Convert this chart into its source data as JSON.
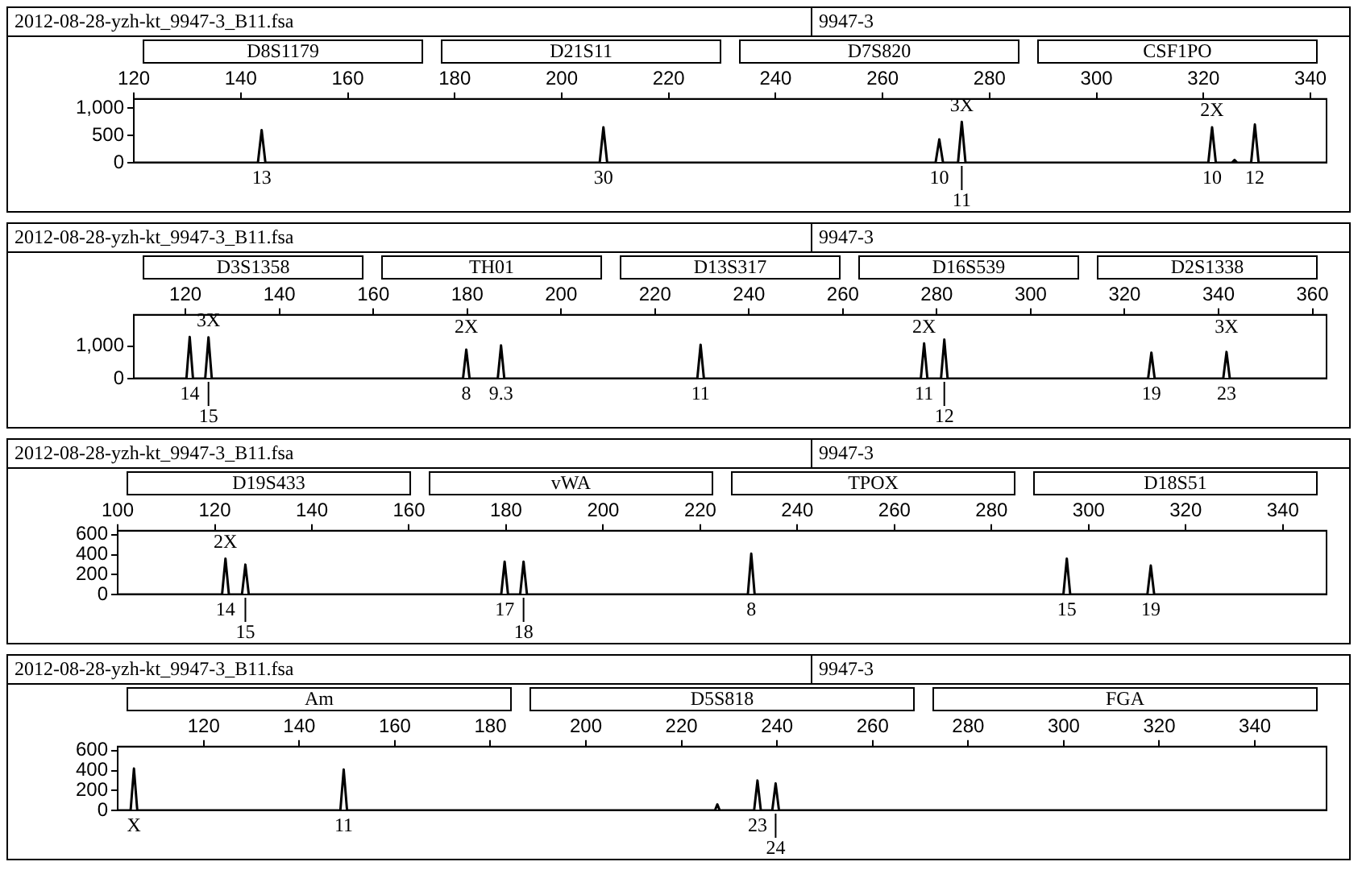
{
  "chart_data": [
    {
      "type": "line",
      "title": "2012-08-28-yzh-kt_9947-3_B11.fsa",
      "subtitle": "9947-3",
      "color": "#000000",
      "xlim": [
        120,
        343
      ],
      "xticks": [
        120,
        140,
        160,
        180,
        200,
        220,
        240,
        260,
        280,
        300,
        320,
        340
      ],
      "ylim": [
        0,
        1170
      ],
      "yticks": [
        0,
        500,
        {
          "value": 1000,
          "label": "1,000"
        }
      ],
      "x": [
        120,
        143.2,
        143.9,
        144.6,
        207.1,
        207.8,
        208.5,
        269.9,
        270.6,
        271.3,
        274.1,
        274.8,
        275.5,
        320.9,
        321.6,
        322.3,
        325.3,
        325.8,
        326.3,
        328.9,
        329.6,
        330.3,
        343
      ],
      "values": [
        0,
        0,
        600,
        0,
        0,
        650,
        0,
        0,
        430,
        0,
        0,
        750,
        0,
        0,
        650,
        0,
        0,
        50,
        0,
        0,
        700,
        0,
        0
      ],
      "annotations": [
        "D8S1179",
        "D21S11",
        "D7S820",
        "CSF1PO",
        {
          "text": "13",
          "x": 143.9,
          "y": 0
        },
        {
          "text": "30",
          "x": 207.8,
          "y": 0
        },
        {
          "text": "10",
          "x": 270.6,
          "y": 0
        },
        {
          "text": "11",
          "x": 274.8,
          "y": 0
        },
        {
          "text": "10",
          "x": 321.6,
          "y": 0
        },
        {
          "text": "12",
          "x": 329.6,
          "y": 0
        },
        {
          "text": "3X",
          "x": 274.8,
          "y": 750
        },
        {
          "text": "2X",
          "x": 321.6,
          "y": 650
        }
      ]
    },
    {
      "type": "line",
      "title": "2012-08-28-yzh-kt_9947-3_B11.fsa",
      "subtitle": "9947-3",
      "color": "#000000",
      "xlim": [
        109,
        363
      ],
      "xticks": [
        120,
        140,
        160,
        180,
        200,
        220,
        240,
        260,
        280,
        300,
        320,
        340,
        360
      ],
      "ylim": [
        0,
        1960
      ],
      "yticks": [
        0,
        {
          "value": 1000,
          "label": "1,000"
        }
      ],
      "x": [
        109,
        120.2,
        120.9,
        121.6,
        124.2,
        124.9,
        125.6,
        179.1,
        179.8,
        180.5,
        186.5,
        187.2,
        187.9,
        229,
        229.7,
        230.4,
        276.6,
        277.3,
        278,
        280.9,
        281.6,
        282.3,
        325,
        325.7,
        326.4,
        341,
        341.7,
        342.4,
        363
      ],
      "values": [
        0,
        0,
        1280,
        0,
        0,
        1270,
        0,
        0,
        890,
        0,
        0,
        1020,
        0,
        0,
        1040,
        0,
        0,
        1080,
        0,
        0,
        1200,
        0,
        0,
        800,
        0,
        0,
        820,
        0,
        0
      ],
      "annotations": [
        "D3S1358",
        "TH01",
        "D13S317",
        "D16S539",
        "D2S1338",
        {
          "text": "14",
          "x": 120.9,
          "y": 0
        },
        {
          "text": "15",
          "x": 124.9,
          "y": 0
        },
        {
          "text": "8",
          "x": 179.8,
          "y": 0
        },
        {
          "text": "9.3",
          "x": 187.2,
          "y": 0
        },
        {
          "text": "11",
          "x": 229.7,
          "y": 0
        },
        {
          "text": "11",
          "x": 277.3,
          "y": 0
        },
        {
          "text": "12",
          "x": 281.6,
          "y": 0
        },
        {
          "text": "19",
          "x": 325.7,
          "y": 0
        },
        {
          "text": "23",
          "x": 341.7,
          "y": 0
        },
        {
          "text": "3X",
          "x": 124.9,
          "y": 1270
        },
        {
          "text": "2X",
          "x": 179.8,
          "y": 890
        },
        {
          "text": "2X",
          "x": 277.3,
          "y": 1080
        },
        {
          "text": "3X",
          "x": 341.7,
          "y": 820
        }
      ]
    },
    {
      "type": "line",
      "title": "2012-08-28-yzh-kt_9947-3_B11.fsa",
      "subtitle": "9947-3",
      "color": "#000000",
      "xlim": [
        100,
        349
      ],
      "xticks": [
        100,
        120,
        140,
        160,
        180,
        200,
        220,
        240,
        260,
        280,
        300,
        320,
        340
      ],
      "ylim": [
        0,
        640
      ],
      "yticks": [
        0,
        200,
        400,
        600
      ],
      "x": [
        100,
        121.5,
        122.2,
        122.9,
        125.6,
        126.3,
        127,
        179,
        179.7,
        180.4,
        182.9,
        183.6,
        184.3,
        229.8,
        230.5,
        231.2,
        294.8,
        295.5,
        296.2,
        312.1,
        312.8,
        313.5,
        349
      ],
      "values": [
        0,
        0,
        360,
        0,
        0,
        300,
        0,
        0,
        330,
        0,
        0,
        330,
        0,
        0,
        410,
        0,
        0,
        360,
        0,
        0,
        290,
        0,
        0
      ],
      "annotations": [
        "D19S433",
        "vWA",
        "TPOX",
        "D18S51",
        {
          "text": "14",
          "x": 122.2,
          "y": 0
        },
        {
          "text": "15",
          "x": 126.3,
          "y": 0
        },
        {
          "text": "17",
          "x": 179.7,
          "y": 0
        },
        {
          "text": "18",
          "x": 183.6,
          "y": 0
        },
        {
          "text": "8",
          "x": 230.5,
          "y": 0
        },
        {
          "text": "15",
          "x": 295.5,
          "y": 0
        },
        {
          "text": "19",
          "x": 312.8,
          "y": 0
        },
        {
          "text": "2X",
          "x": 122.2,
          "y": 360
        }
      ]
    },
    {
      "type": "line",
      "title": "2012-08-28-yzh-kt_9947-3_B11.fsa",
      "subtitle": "9947-3",
      "color": "#000000",
      "xlim": [
        102,
        355
      ],
      "xticks": [
        120,
        140,
        160,
        180,
        200,
        220,
        240,
        260,
        280,
        300,
        320,
        340
      ],
      "ylim": [
        0,
        640
      ],
      "yticks": [
        0,
        200,
        400,
        600
      ],
      "x": [
        102,
        104.7,
        105.4,
        106.1,
        148.6,
        149.3,
        150,
        227,
        227.5,
        228,
        235.2,
        235.9,
        236.6,
        239,
        239.7,
        240.4,
        355
      ],
      "values": [
        0,
        0,
        420,
        0,
        0,
        410,
        0,
        0,
        60,
        0,
        0,
        300,
        0,
        0,
        270,
        0,
        0
      ],
      "annotations": [
        "Am",
        "D5S818",
        "FGA",
        {
          "text": "X",
          "x": 105.4,
          "y": 0
        },
        {
          "text": "11",
          "x": 149.3,
          "y": 0
        },
        {
          "text": "23",
          "x": 235.9,
          "y": 0
        },
        {
          "text": "24",
          "x": 239.7,
          "y": 0
        }
      ]
    }
  ]
}
